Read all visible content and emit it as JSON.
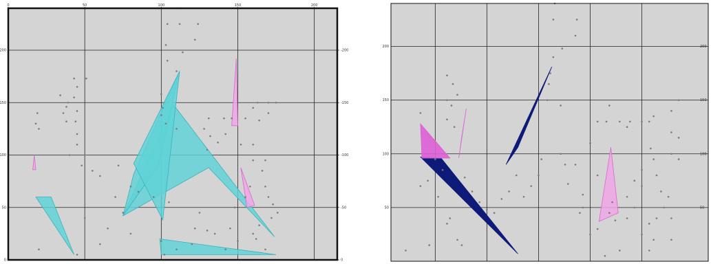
{
  "colors": {
    "background": "#d4d4d4",
    "grid": "#222222",
    "frame": "#111111",
    "cyan_fill": "#5fd3d8",
    "cyan_stroke": "#35b3bb",
    "pink_fill": "#f0a6e6",
    "pink_stroke": "#d46ac9",
    "magenta_fill": "#dd5fd6",
    "navy_fill": "#0e1a78",
    "point": "#7a7a7a"
  },
  "chart_data": [
    {
      "type": "scatter",
      "title": "",
      "xlim": [
        0,
        215
      ],
      "ylim": [
        0,
        240
      ],
      "x_ticks": [
        {
          "value": 0,
          "label": "0"
        },
        {
          "value": 50,
          "label": "50"
        },
        {
          "value": 100,
          "label": "100"
        },
        {
          "value": 150,
          "label": "150"
        },
        {
          "value": 200,
          "label": "200"
        }
      ],
      "y_ticks_left": [
        {
          "value": 0,
          "label": "0"
        },
        {
          "value": 50,
          "label": "50"
        },
        {
          "value": 100,
          "label": "100"
        },
        {
          "value": 150,
          "label": "150"
        },
        {
          "value": 200,
          "label": "200"
        }
      ],
      "y_ticks_right": [
        {
          "value": 0,
          "label": "0"
        },
        {
          "value": 50,
          "label": "-50"
        },
        {
          "value": 100,
          "label": "-100"
        },
        {
          "value": 150,
          "label": "-150"
        },
        {
          "value": 200,
          "label": "-200"
        }
      ],
      "grid": true,
      "points": [
        [
          113,
          240
        ],
        [
          104,
          225
        ],
        [
          112,
          225
        ],
        [
          124,
          225
        ],
        [
          122,
          210
        ],
        [
          103,
          205
        ],
        [
          114,
          198
        ],
        [
          104,
          190
        ],
        [
          110,
          180
        ],
        [
          43,
          173
        ],
        [
          51,
          173
        ],
        [
          45,
          165
        ],
        [
          43,
          155
        ],
        [
          34,
          157
        ],
        [
          39,
          150
        ],
        [
          19,
          140
        ],
        [
          18,
          130
        ],
        [
          38,
          146
        ],
        [
          36,
          140
        ],
        [
          45,
          142
        ],
        [
          20,
          125
        ],
        [
          38,
          132
        ],
        [
          44,
          132
        ],
        [
          100,
          158
        ],
        [
          101,
          145
        ],
        [
          100,
          138
        ],
        [
          103,
          130
        ],
        [
          110,
          125
        ],
        [
          131,
          135
        ],
        [
          141,
          135
        ],
        [
          146,
          135
        ],
        [
          155,
          135
        ],
        [
          160,
          145
        ],
        [
          164,
          133
        ],
        [
          163,
          150
        ],
        [
          170,
          150
        ],
        [
          170,
          140
        ],
        [
          175,
          150
        ],
        [
          152,
          110
        ],
        [
          160,
          110
        ],
        [
          160,
          95
        ],
        [
          168,
          95
        ],
        [
          166,
          85
        ],
        [
          168,
          70
        ],
        [
          170,
          60
        ],
        [
          173,
          53
        ],
        [
          176,
          45
        ],
        [
          172,
          40
        ],
        [
          164,
          33
        ],
        [
          162,
          20
        ],
        [
          168,
          10
        ],
        [
          158,
          70
        ],
        [
          155,
          60
        ],
        [
          148,
          50
        ],
        [
          145,
          30
        ],
        [
          150,
          18
        ],
        [
          142,
          10
        ],
        [
          160,
          25
        ],
        [
          45,
          120
        ],
        [
          40,
          100
        ],
        [
          50,
          100
        ],
        [
          45,
          110
        ],
        [
          48,
          90
        ],
        [
          55,
          85
        ],
        [
          60,
          80
        ],
        [
          72,
          90
        ],
        [
          80,
          70
        ],
        [
          85,
          65
        ],
        [
          95,
          60
        ],
        [
          105,
          55
        ],
        [
          125,
          45
        ],
        [
          122,
          30
        ],
        [
          130,
          28
        ],
        [
          135,
          25
        ],
        [
          120,
          15
        ],
        [
          110,
          10
        ],
        [
          100,
          18
        ],
        [
          102,
          5
        ],
        [
          80,
          25
        ],
        [
          75,
          45
        ],
        [
          70,
          60
        ],
        [
          65,
          30
        ],
        [
          60,
          15
        ],
        [
          20,
          10
        ],
        [
          45,
          5
        ],
        [
          50,
          40
        ],
        [
          130,
          105
        ],
        [
          137,
          112
        ],
        [
          142,
          120
        ],
        [
          132,
          118
        ],
        [
          128,
          125
        ]
      ],
      "polygons": [
        {
          "color": "cyan",
          "vertices": [
            [
              75,
              42
            ],
            [
              108,
              148
            ],
            [
              174,
              22
            ],
            [
              131,
              88
            ]
          ]
        },
        {
          "color": "cyan",
          "vertices": [
            [
              75,
              42
            ],
            [
              98,
              90
            ],
            [
              112,
              180
            ],
            [
              82,
              82
            ]
          ]
        },
        {
          "color": "cyan",
          "vertices": [
            [
              82,
              92
            ],
            [
              112,
              180
            ],
            [
              101,
              38
            ]
          ]
        },
        {
          "color": "cyan",
          "vertices": [
            [
              18,
              60
            ],
            [
              28,
              60
            ],
            [
              43,
              5
            ]
          ]
        },
        {
          "color": "cyan",
          "vertices": [
            [
              99,
              20
            ],
            [
              100,
              5
            ],
            [
              175,
              5
            ]
          ]
        },
        {
          "color": "pink",
          "vertices": [
            [
              146,
              128
            ],
            [
              149,
              192
            ],
            [
              150,
              128
            ]
          ]
        },
        {
          "color": "pink",
          "vertices": [
            [
              16,
              86
            ],
            [
              17,
              100
            ],
            [
              18,
              86
            ]
          ]
        },
        {
          "color": "pink",
          "vertices": [
            [
              152,
              88
            ],
            [
              161,
              52
            ],
            [
              156,
              50
            ]
          ]
        }
      ]
    },
    {
      "type": "scatter",
      "title": "",
      "xlim": [
        0,
        215
      ],
      "ylim": [
        0,
        240
      ],
      "x_ticks": [],
      "y_ticks_left": [
        {
          "value": 50,
          "label": "50"
        },
        {
          "value": 100,
          "label": "100"
        },
        {
          "value": 150,
          "label": "150"
        },
        {
          "value": 200,
          "label": "200"
        }
      ],
      "y_ticks_right": [
        {
          "value": 50,
          "label": "50"
        },
        {
          "value": 100,
          "label": "100"
        },
        {
          "value": 150,
          "label": "150"
        },
        {
          "value": 200,
          "label": "200"
        }
      ],
      "grid": true,
      "points": [
        [
          111,
          240
        ],
        [
          110,
          225
        ],
        [
          126,
          225
        ],
        [
          125,
          210
        ],
        [
          116,
          198
        ],
        [
          110,
          190
        ],
        [
          38,
          173
        ],
        [
          42,
          165
        ],
        [
          45,
          155
        ],
        [
          38,
          150
        ],
        [
          41,
          145
        ],
        [
          20,
          138
        ],
        [
          38,
          132
        ],
        [
          43,
          125
        ],
        [
          108,
          175
        ],
        [
          107,
          165
        ],
        [
          106,
          150
        ],
        [
          115,
          145
        ],
        [
          140,
          130
        ],
        [
          146,
          130
        ],
        [
          148,
          145
        ],
        [
          155,
          130
        ],
        [
          162,
          130
        ],
        [
          160,
          125
        ],
        [
          170,
          130
        ],
        [
          175,
          130
        ],
        [
          178,
          135
        ],
        [
          190,
          140
        ],
        [
          195,
          150
        ],
        [
          190,
          120
        ],
        [
          195,
          115
        ],
        [
          190,
          100
        ],
        [
          195,
          95
        ],
        [
          176,
          105
        ],
        [
          178,
          95
        ],
        [
          170,
          85
        ],
        [
          165,
          75
        ],
        [
          170,
          70
        ],
        [
          180,
          80
        ],
        [
          183,
          65
        ],
        [
          188,
          60
        ],
        [
          185,
          50
        ],
        [
          190,
          40
        ],
        [
          180,
          40
        ],
        [
          175,
          35
        ],
        [
          170,
          25
        ],
        [
          160,
          60
        ],
        [
          165,
          50
        ],
        [
          150,
          55
        ],
        [
          140,
          30
        ],
        [
          135,
          25
        ],
        [
          145,
          5
        ],
        [
          155,
          10
        ],
        [
          160,
          40
        ],
        [
          178,
          20
        ],
        [
          175,
          10
        ],
        [
          190,
          20
        ],
        [
          30,
          95
        ],
        [
          35,
          85
        ],
        [
          20,
          70
        ],
        [
          25,
          75
        ],
        [
          32,
          60
        ],
        [
          30,
          50
        ],
        [
          40,
          40
        ],
        [
          38,
          35
        ],
        [
          45,
          20
        ],
        [
          48,
          15
        ],
        [
          26,
          15
        ],
        [
          10,
          10
        ],
        [
          50,
          78
        ],
        [
          55,
          65
        ],
        [
          60,
          55
        ],
        [
          65,
          48
        ],
        [
          70,
          45
        ],
        [
          90,
          60
        ],
        [
          95,
          70
        ],
        [
          100,
          80
        ],
        [
          102,
          95
        ],
        [
          85,
          80
        ],
        [
          80,
          65
        ],
        [
          75,
          58
        ],
        [
          120,
          72
        ],
        [
          118,
          90
        ],
        [
          115,
          100
        ],
        [
          125,
          90
        ],
        [
          148,
          45
        ],
        [
          152,
          38
        ],
        [
          130,
          62
        ],
        [
          130,
          50
        ],
        [
          128,
          45
        ],
        [
          140,
          80
        ],
        [
          135,
          110
        ]
      ],
      "polygons": [
        {
          "color": "navy",
          "vertices": [
            [
              20,
              97
            ],
            [
              86,
              7
            ],
            [
              34,
              96
            ]
          ]
        },
        {
          "color": "navy",
          "vertices": [
            [
              78,
              90
            ],
            [
              109,
              181
            ],
            [
              86,
              106
            ]
          ]
        },
        {
          "color": "magenta",
          "vertices": [
            [
              20,
              128
            ],
            [
              21,
              96
            ],
            [
              40,
              96
            ]
          ]
        },
        {
          "color": "magenta",
          "vertices": [
            [
              46,
              96
            ],
            [
              51,
              142
            ],
            [
              48,
              116
            ]
          ]
        },
        {
          "color": "pink",
          "vertices": [
            [
              149,
              106
            ],
            [
              141,
              37
            ],
            [
              154,
              45
            ]
          ]
        }
      ]
    }
  ]
}
